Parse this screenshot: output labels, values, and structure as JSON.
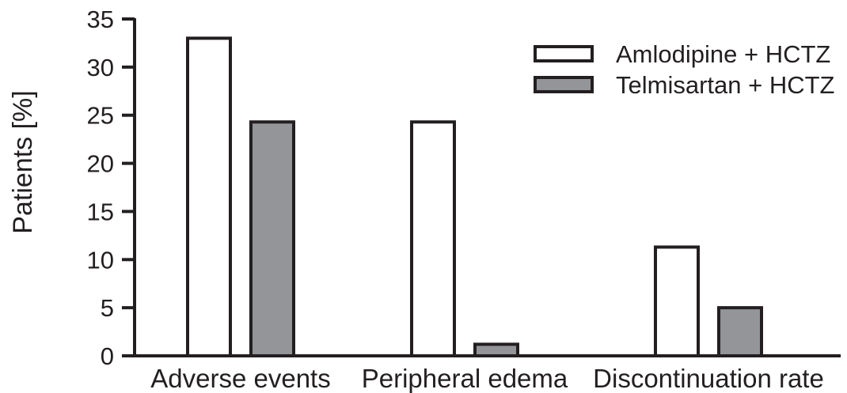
{
  "chart_data": {
    "type": "bar",
    "title": "",
    "xlabel": "",
    "ylabel": "Patients [%]",
    "ylim": [
      0,
      35
    ],
    "yticks": [
      0,
      5,
      10,
      15,
      20,
      25,
      30,
      35
    ],
    "categories": [
      "Adverse events",
      "Peripheral edema",
      "Discontinuation rate"
    ],
    "series": [
      {
        "name": "Amlodipine + HCTZ",
        "color": "#ffffff",
        "values": [
          33.0,
          24.3,
          11.3
        ]
      },
      {
        "name": "Telmisartan + HCTZ",
        "color": "#939598",
        "values": [
          24.3,
          1.2,
          5.0
        ]
      }
    ],
    "legend_position": "top-right",
    "grid": false
  }
}
